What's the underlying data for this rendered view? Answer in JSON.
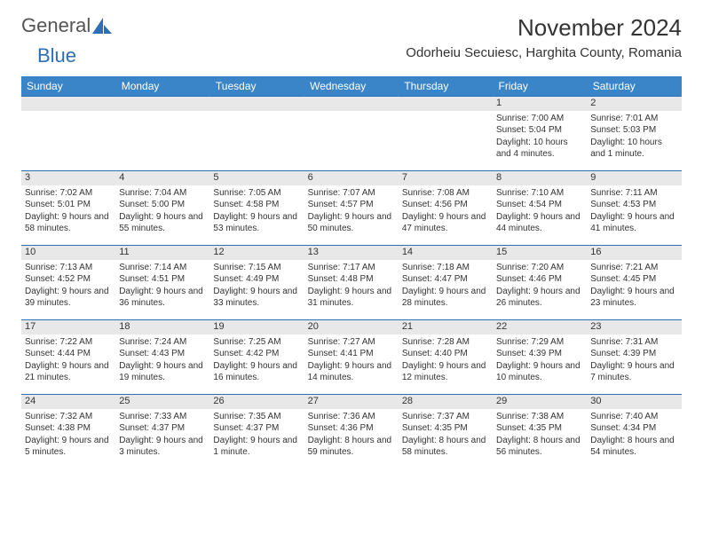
{
  "logo": {
    "text_general": "General",
    "text_blue": "Blue"
  },
  "title": "November 2024",
  "location": "Odorheiu Secuiesc, Harghita County, Romania",
  "colors": {
    "header_bg": "#3a85c8",
    "header_text": "#ffffff",
    "daynum_bg": "#e8e8e8",
    "border": "#2d6fb5",
    "logo_blue": "#2d6fb5",
    "text": "#333333",
    "background": "#ffffff"
  },
  "weekdays": [
    "Sunday",
    "Monday",
    "Tuesday",
    "Wednesday",
    "Thursday",
    "Friday",
    "Saturday"
  ],
  "weeks": [
    [
      null,
      null,
      null,
      null,
      null,
      {
        "n": "1",
        "sunrise": "7:00 AM",
        "sunset": "5:04 PM",
        "daylight": "10 hours and 4 minutes."
      },
      {
        "n": "2",
        "sunrise": "7:01 AM",
        "sunset": "5:03 PM",
        "daylight": "10 hours and 1 minute."
      }
    ],
    [
      {
        "n": "3",
        "sunrise": "7:02 AM",
        "sunset": "5:01 PM",
        "daylight": "9 hours and 58 minutes."
      },
      {
        "n": "4",
        "sunrise": "7:04 AM",
        "sunset": "5:00 PM",
        "daylight": "9 hours and 55 minutes."
      },
      {
        "n": "5",
        "sunrise": "7:05 AM",
        "sunset": "4:58 PM",
        "daylight": "9 hours and 53 minutes."
      },
      {
        "n": "6",
        "sunrise": "7:07 AM",
        "sunset": "4:57 PM",
        "daylight": "9 hours and 50 minutes."
      },
      {
        "n": "7",
        "sunrise": "7:08 AM",
        "sunset": "4:56 PM",
        "daylight": "9 hours and 47 minutes."
      },
      {
        "n": "8",
        "sunrise": "7:10 AM",
        "sunset": "4:54 PM",
        "daylight": "9 hours and 44 minutes."
      },
      {
        "n": "9",
        "sunrise": "7:11 AM",
        "sunset": "4:53 PM",
        "daylight": "9 hours and 41 minutes."
      }
    ],
    [
      {
        "n": "10",
        "sunrise": "7:13 AM",
        "sunset": "4:52 PM",
        "daylight": "9 hours and 39 minutes."
      },
      {
        "n": "11",
        "sunrise": "7:14 AM",
        "sunset": "4:51 PM",
        "daylight": "9 hours and 36 minutes."
      },
      {
        "n": "12",
        "sunrise": "7:15 AM",
        "sunset": "4:49 PM",
        "daylight": "9 hours and 33 minutes."
      },
      {
        "n": "13",
        "sunrise": "7:17 AM",
        "sunset": "4:48 PM",
        "daylight": "9 hours and 31 minutes."
      },
      {
        "n": "14",
        "sunrise": "7:18 AM",
        "sunset": "4:47 PM",
        "daylight": "9 hours and 28 minutes."
      },
      {
        "n": "15",
        "sunrise": "7:20 AM",
        "sunset": "4:46 PM",
        "daylight": "9 hours and 26 minutes."
      },
      {
        "n": "16",
        "sunrise": "7:21 AM",
        "sunset": "4:45 PM",
        "daylight": "9 hours and 23 minutes."
      }
    ],
    [
      {
        "n": "17",
        "sunrise": "7:22 AM",
        "sunset": "4:44 PM",
        "daylight": "9 hours and 21 minutes."
      },
      {
        "n": "18",
        "sunrise": "7:24 AM",
        "sunset": "4:43 PM",
        "daylight": "9 hours and 19 minutes."
      },
      {
        "n": "19",
        "sunrise": "7:25 AM",
        "sunset": "4:42 PM",
        "daylight": "9 hours and 16 minutes."
      },
      {
        "n": "20",
        "sunrise": "7:27 AM",
        "sunset": "4:41 PM",
        "daylight": "9 hours and 14 minutes."
      },
      {
        "n": "21",
        "sunrise": "7:28 AM",
        "sunset": "4:40 PM",
        "daylight": "9 hours and 12 minutes."
      },
      {
        "n": "22",
        "sunrise": "7:29 AM",
        "sunset": "4:39 PM",
        "daylight": "9 hours and 10 minutes."
      },
      {
        "n": "23",
        "sunrise": "7:31 AM",
        "sunset": "4:39 PM",
        "daylight": "9 hours and 7 minutes."
      }
    ],
    [
      {
        "n": "24",
        "sunrise": "7:32 AM",
        "sunset": "4:38 PM",
        "daylight": "9 hours and 5 minutes."
      },
      {
        "n": "25",
        "sunrise": "7:33 AM",
        "sunset": "4:37 PM",
        "daylight": "9 hours and 3 minutes."
      },
      {
        "n": "26",
        "sunrise": "7:35 AM",
        "sunset": "4:37 PM",
        "daylight": "9 hours and 1 minute."
      },
      {
        "n": "27",
        "sunrise": "7:36 AM",
        "sunset": "4:36 PM",
        "daylight": "8 hours and 59 minutes."
      },
      {
        "n": "28",
        "sunrise": "7:37 AM",
        "sunset": "4:35 PM",
        "daylight": "8 hours and 58 minutes."
      },
      {
        "n": "29",
        "sunrise": "7:38 AM",
        "sunset": "4:35 PM",
        "daylight": "8 hours and 56 minutes."
      },
      {
        "n": "30",
        "sunrise": "7:40 AM",
        "sunset": "4:34 PM",
        "daylight": "8 hours and 54 minutes."
      }
    ]
  ],
  "labels": {
    "sunrise": "Sunrise:",
    "sunset": "Sunset:",
    "daylight": "Daylight:"
  }
}
